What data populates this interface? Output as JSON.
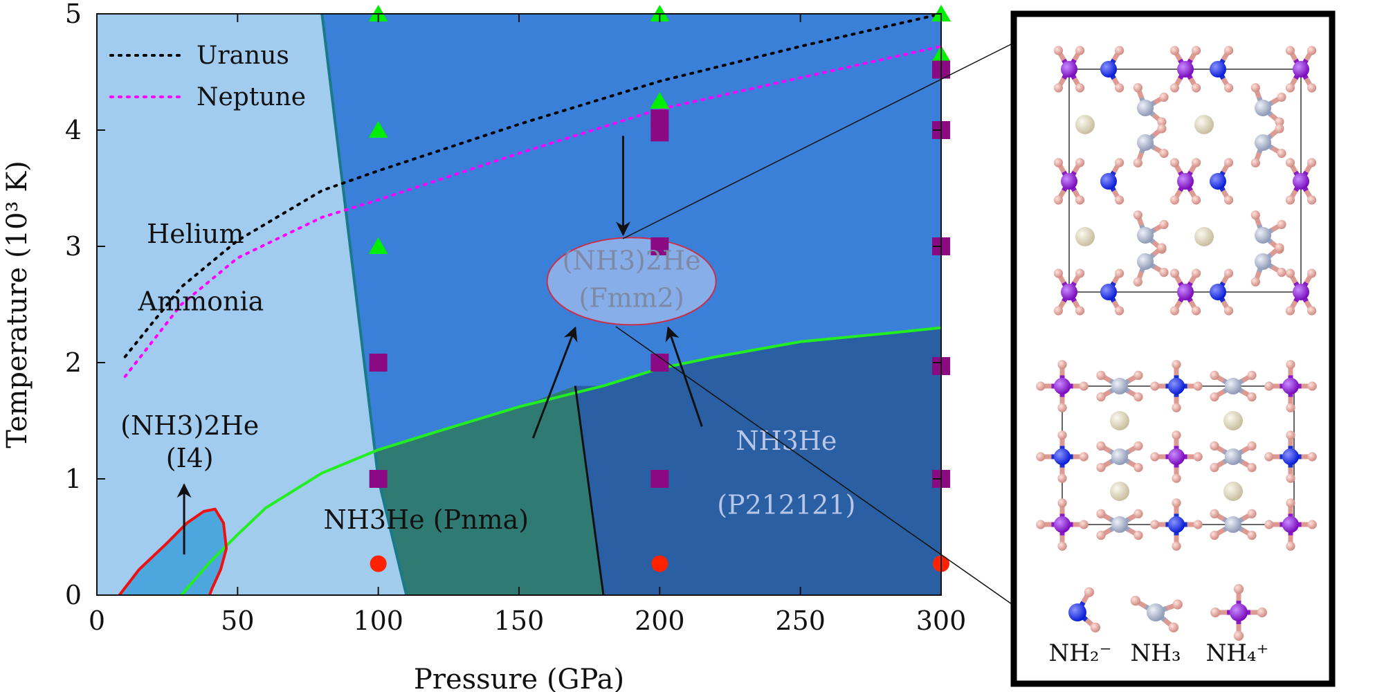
{
  "chart_data": {
    "type": "scatter",
    "xlabel": "Pressure (GPa)",
    "ylabel": "Temperature (10³ K)",
    "xlim": [
      0,
      300
    ],
    "ylim": [
      0,
      5
    ],
    "xticks": [
      0,
      50,
      100,
      150,
      200,
      250,
      300
    ],
    "yticks": [
      0,
      1,
      2,
      3,
      4,
      5
    ],
    "legend_position": "top-left",
    "series": [
      {
        "name": "Uranus",
        "kind": "dotted-line",
        "color": "#000000",
        "x": [
          10,
          30,
          50,
          80,
          100,
          150,
          200,
          250,
          300
        ],
        "y": [
          2.05,
          2.65,
          3.05,
          3.48,
          3.65,
          4.05,
          4.42,
          4.72,
          5.0
        ]
      },
      {
        "name": "Neptune",
        "kind": "dotted-line",
        "color": "#ff00ff",
        "x": [
          10,
          30,
          50,
          80,
          100,
          150,
          200,
          250,
          300
        ],
        "y": [
          1.88,
          2.5,
          2.9,
          3.25,
          3.4,
          3.8,
          4.18,
          4.45,
          4.72
        ]
      },
      {
        "kind": "markers",
        "shape": "triangle",
        "color": "#00ee00",
        "x": [
          100,
          100,
          100,
          200,
          200,
          300,
          300
        ],
        "y": [
          5.0,
          4.0,
          3.0,
          5.0,
          4.25,
          5.0,
          4.65
        ]
      },
      {
        "kind": "markers",
        "shape": "square",
        "color": "#8b0a84",
        "x": [
          100,
          100,
          200,
          200,
          200,
          200,
          200,
          300,
          300,
          300,
          300,
          300
        ],
        "y": [
          2.0,
          1.0,
          4.1,
          3.98,
          3.0,
          2.0,
          1.0,
          4.52,
          4.0,
          3.0,
          1.97,
          1.0
        ]
      },
      {
        "kind": "markers",
        "shape": "circle",
        "color": "#ff2200",
        "x": [
          100,
          200,
          300
        ],
        "y": [
          0.27,
          0.27,
          0.27
        ]
      }
    ],
    "boundaries": [
      {
        "name": "helium-ammonia-boundary",
        "color": "#1a7a8a",
        "x": [
          80,
          100,
          110
        ],
        "y": [
          5.0,
          1.0,
          0.0
        ]
      },
      {
        "name": "green-phase-boundary",
        "color": "#22ee22",
        "x": [
          30,
          40,
          50,
          60,
          80,
          100,
          120,
          150,
          180,
          200,
          220,
          250,
          280,
          300
        ],
        "y": [
          0.0,
          0.28,
          0.52,
          0.75,
          1.05,
          1.25,
          1.4,
          1.62,
          1.8,
          1.95,
          2.05,
          2.18,
          2.25,
          2.3
        ]
      },
      {
        "name": "pnma-p212121-boundary",
        "color": "#111111",
        "x": [
          170,
          180
        ],
        "y": [
          1.8,
          0.0
        ]
      },
      {
        "name": "i4-region-outline",
        "color": "#ee1111",
        "x": [
          8,
          15,
          25,
          32,
          38,
          42,
          45,
          46,
          44,
          41,
          40
        ],
        "y": [
          0.0,
          0.22,
          0.45,
          0.62,
          0.72,
          0.74,
          0.62,
          0.4,
          0.22,
          0.06,
          0.0
        ]
      }
    ],
    "annotations": [
      {
        "text": "Helium",
        "x": 35,
        "y": 3.03
      },
      {
        "text": "Ammonia",
        "x": 37,
        "y": 2.45
      },
      {
        "text": "(NH3)2He",
        "x": 33,
        "y": 1.38
      },
      {
        "text": "(I4)",
        "x": 33,
        "y": 1.1
      },
      {
        "text": "NH3He (Pnma)",
        "x": 117,
        "y": 0.57
      },
      {
        "text": "(NH3)2He",
        "x": 190,
        "y": 2.8
      },
      {
        "text": "(Fmm2)",
        "x": 190,
        "y": 2.48
      },
      {
        "text": "NH3He",
        "x": 245,
        "y": 1.25
      },
      {
        "text": "(P212121)",
        "x": 245,
        "y": 0.7
      }
    ],
    "arrows": [
      {
        "from": [
          31,
          0.35
        ],
        "to": [
          31,
          0.95
        ]
      },
      {
        "from": [
          187,
          3.95
        ],
        "to": [
          187,
          3.1
        ]
      },
      {
        "from": [
          155,
          1.35
        ],
        "to": [
          170,
          2.3
        ]
      },
      {
        "from": [
          215,
          1.45
        ],
        "to": [
          203,
          2.3
        ]
      }
    ]
  },
  "structure_panel": {
    "legend_labels": [
      "NH₂⁻",
      "NH₃",
      "NH₄⁺"
    ],
    "atom_colors": {
      "nh2_nitrogen": "#0a1ed6",
      "nh3_nitrogen": "#a7b0c8",
      "nh4_nitrogen": "#8a14c8",
      "hydrogen": "#e8a9a2",
      "helium": "#ddd5bb"
    }
  }
}
